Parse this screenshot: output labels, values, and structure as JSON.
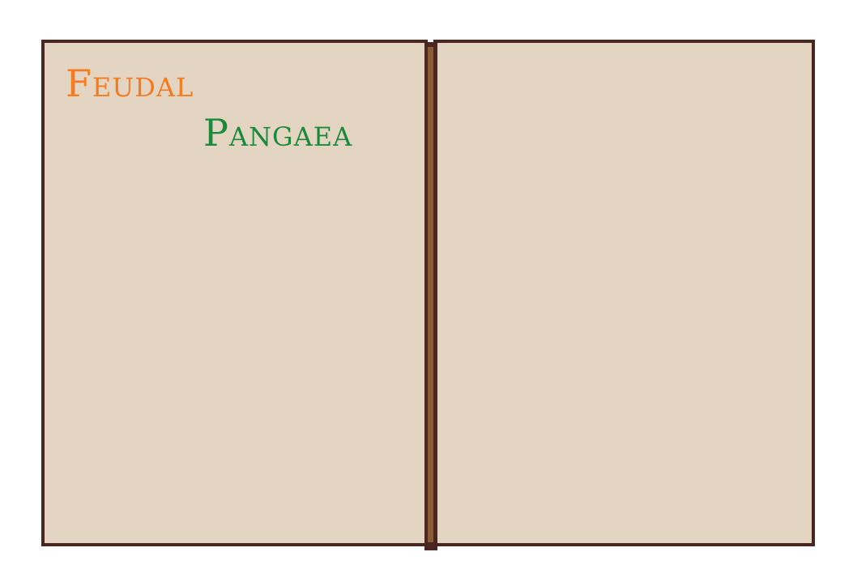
{
  "title": {
    "line1": "Feudal",
    "line2": "Pangaea",
    "line1_color": "#f47b20",
    "line2_color": "#1a8a3c"
  },
  "colors": {
    "book_border": "#4a2620",
    "page_fill": "#e4d4c2",
    "spine_inner": "#8b5a36",
    "background": "#ffffff"
  }
}
